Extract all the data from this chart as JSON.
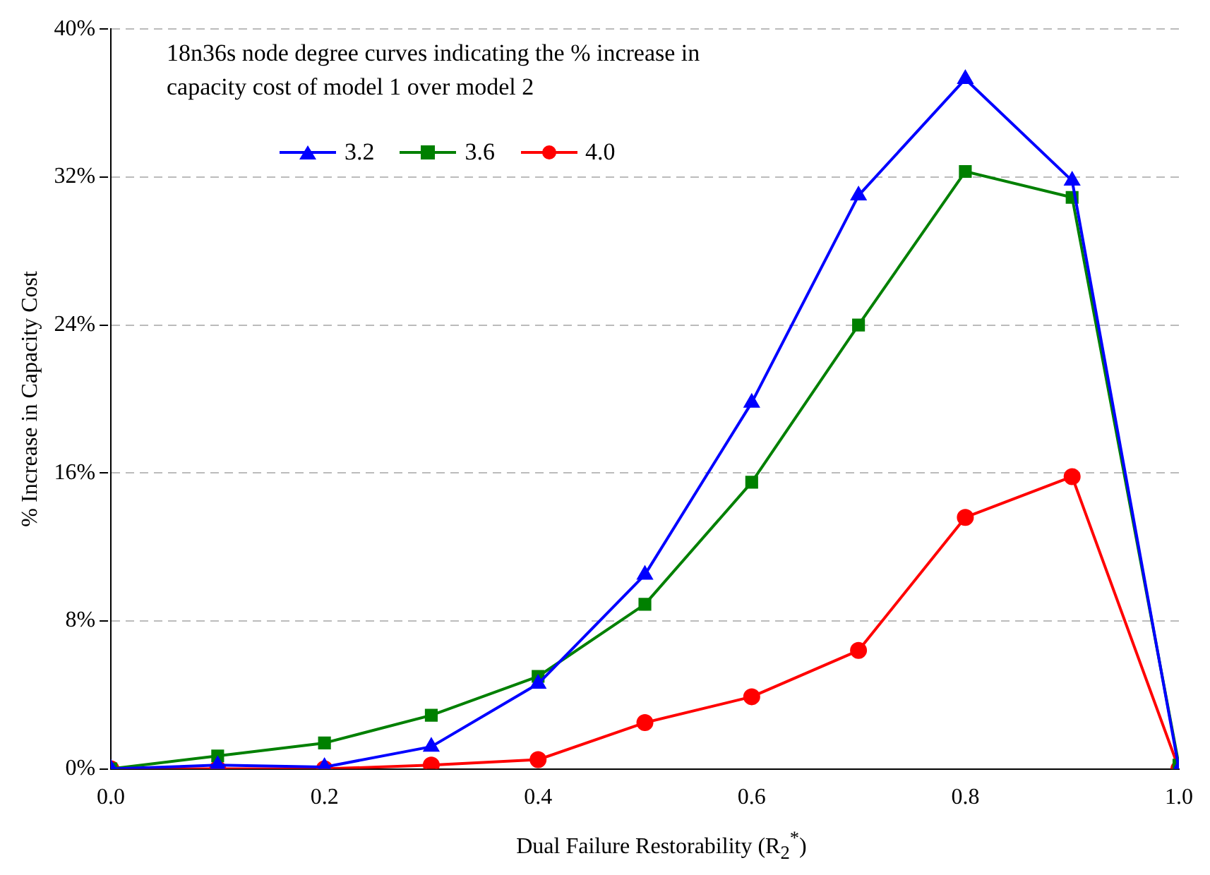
{
  "chart_data": {
    "type": "line",
    "title": "18n36s node degree curves indicating the % increase in capacity cost of model 1 over model 2",
    "xlabel": "Dual Failure Restorability (R$_{2}$$^{*}$)",
    "ylabel": "% Increase in Capacity Cost",
    "x": [
      0,
      0.1,
      0.2,
      0.3,
      0.4,
      0.5,
      0.6,
      0.7,
      0.8,
      0.9,
      1.0
    ],
    "series": [
      {
        "name": "3.2",
        "color": "#0000ff",
        "marker": "triangle",
        "values": [
          0,
          0.2,
          0.1,
          1.2,
          4.6,
          10.5,
          19.8,
          31.0,
          37.3,
          31.8,
          0
        ]
      },
      {
        "name": "3.6",
        "color": "#008000",
        "marker": "square",
        "values": [
          0,
          0.7,
          1.4,
          2.9,
          5.0,
          8.9,
          15.5,
          24.0,
          32.3,
          30.9,
          0.2
        ]
      },
      {
        "name": "4.0",
        "color": "#ff0000",
        "marker": "circle",
        "values": [
          0,
          0,
          0,
          0.2,
          0.5,
          2.5,
          3.9,
          6.4,
          13.6,
          15.8,
          0
        ]
      }
    ],
    "xlim": [
      0,
      1
    ],
    "xticks": [
      {
        "value": 0,
        "label": "0.0"
      },
      {
        "value": 0.2,
        "label": "0.2"
      },
      {
        "value": 0.4,
        "label": "0.4"
      },
      {
        "value": 0.6,
        "label": "0.6"
      },
      {
        "value": 0.8,
        "label": "0.8"
      },
      {
        "value": 1,
        "label": "1.0"
      }
    ],
    "ylim": [
      0,
      40
    ],
    "yticks": [
      {
        "value": 0,
        "label": "0%"
      },
      {
        "value": 8,
        "label": "8%"
      },
      {
        "value": 16,
        "label": "16%"
      },
      {
        "value": 24,
        "label": "24%"
      },
      {
        "value": 32,
        "label": "32%"
      },
      {
        "value": 40,
        "label": "40%"
      }
    ],
    "grid": "y",
    "legend": "top left",
    "line_style": "solid"
  }
}
